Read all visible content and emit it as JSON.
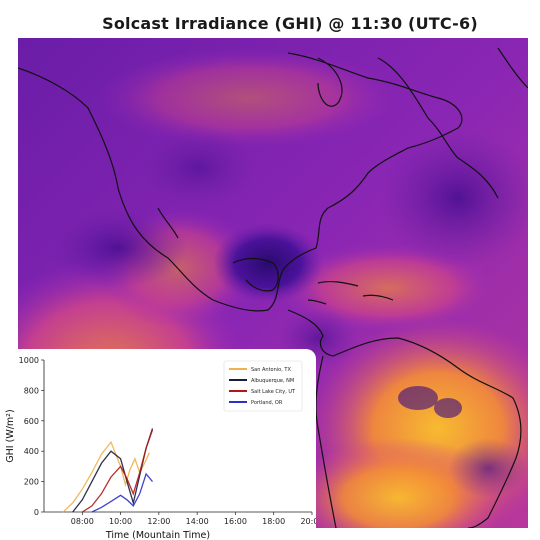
{
  "title": "Solcast Irradiance (GHI) @ 11:30 (UTC-6)",
  "map": {
    "colormap": [
      "#2a0a6e",
      "#5a16a0",
      "#9a2ab8",
      "#d0448a",
      "#f28a3a",
      "#fcc22a"
    ],
    "coastline_color": "#111111"
  },
  "chart_data": {
    "type": "line",
    "xlabel": "Time (Mountain Time)",
    "ylabel": "GHI (W/m²)",
    "ylim": [
      0,
      1000
    ],
    "yticks": [
      "0",
      "200",
      "400",
      "600",
      "800",
      "1000"
    ],
    "xticks": [
      "08:00",
      "10:00",
      "12:00",
      "14:00",
      "16:00",
      "18:00",
      "20:00"
    ],
    "xlim": [
      "06:00",
      "20:00"
    ],
    "legend_position": "top-right",
    "grid": false,
    "series": [
      {
        "name": "San Antonio, TX",
        "color": "#f0b04a",
        "x": [
          "07:00",
          "07:30",
          "08:00",
          "08:30",
          "09:00",
          "09:30",
          "10:00",
          "10:15",
          "10:30",
          "10:45",
          "11:00",
          "11:15",
          "11:30"
        ],
        "y": [
          0,
          60,
          150,
          260,
          380,
          460,
          300,
          180,
          280,
          350,
          260,
          320,
          390
        ]
      },
      {
        "name": "Albuquerque, NM",
        "color": "#1b1b3a",
        "x": [
          "07:30",
          "08:00",
          "08:30",
          "09:00",
          "09:30",
          "10:00",
          "10:20",
          "10:40",
          "11:00",
          "11:20",
          "11:40"
        ],
        "y": [
          0,
          80,
          200,
          320,
          400,
          350,
          200,
          60,
          240,
          420,
          550
        ]
      },
      {
        "name": "Salt Lake City, UT",
        "color": "#b01818",
        "x": [
          "08:00",
          "08:30",
          "09:00",
          "09:30",
          "10:00",
          "10:20",
          "10:40",
          "11:00",
          "11:20",
          "11:40"
        ],
        "y": [
          0,
          40,
          120,
          230,
          300,
          220,
          120,
          260,
          420,
          540
        ]
      },
      {
        "name": "Portland, OR",
        "color": "#2a30c8",
        "x": [
          "08:30",
          "09:00",
          "09:30",
          "10:00",
          "10:20",
          "10:40",
          "11:00",
          "11:20",
          "11:40"
        ],
        "y": [
          0,
          30,
          70,
          110,
          80,
          40,
          120,
          250,
          200
        ]
      }
    ]
  }
}
